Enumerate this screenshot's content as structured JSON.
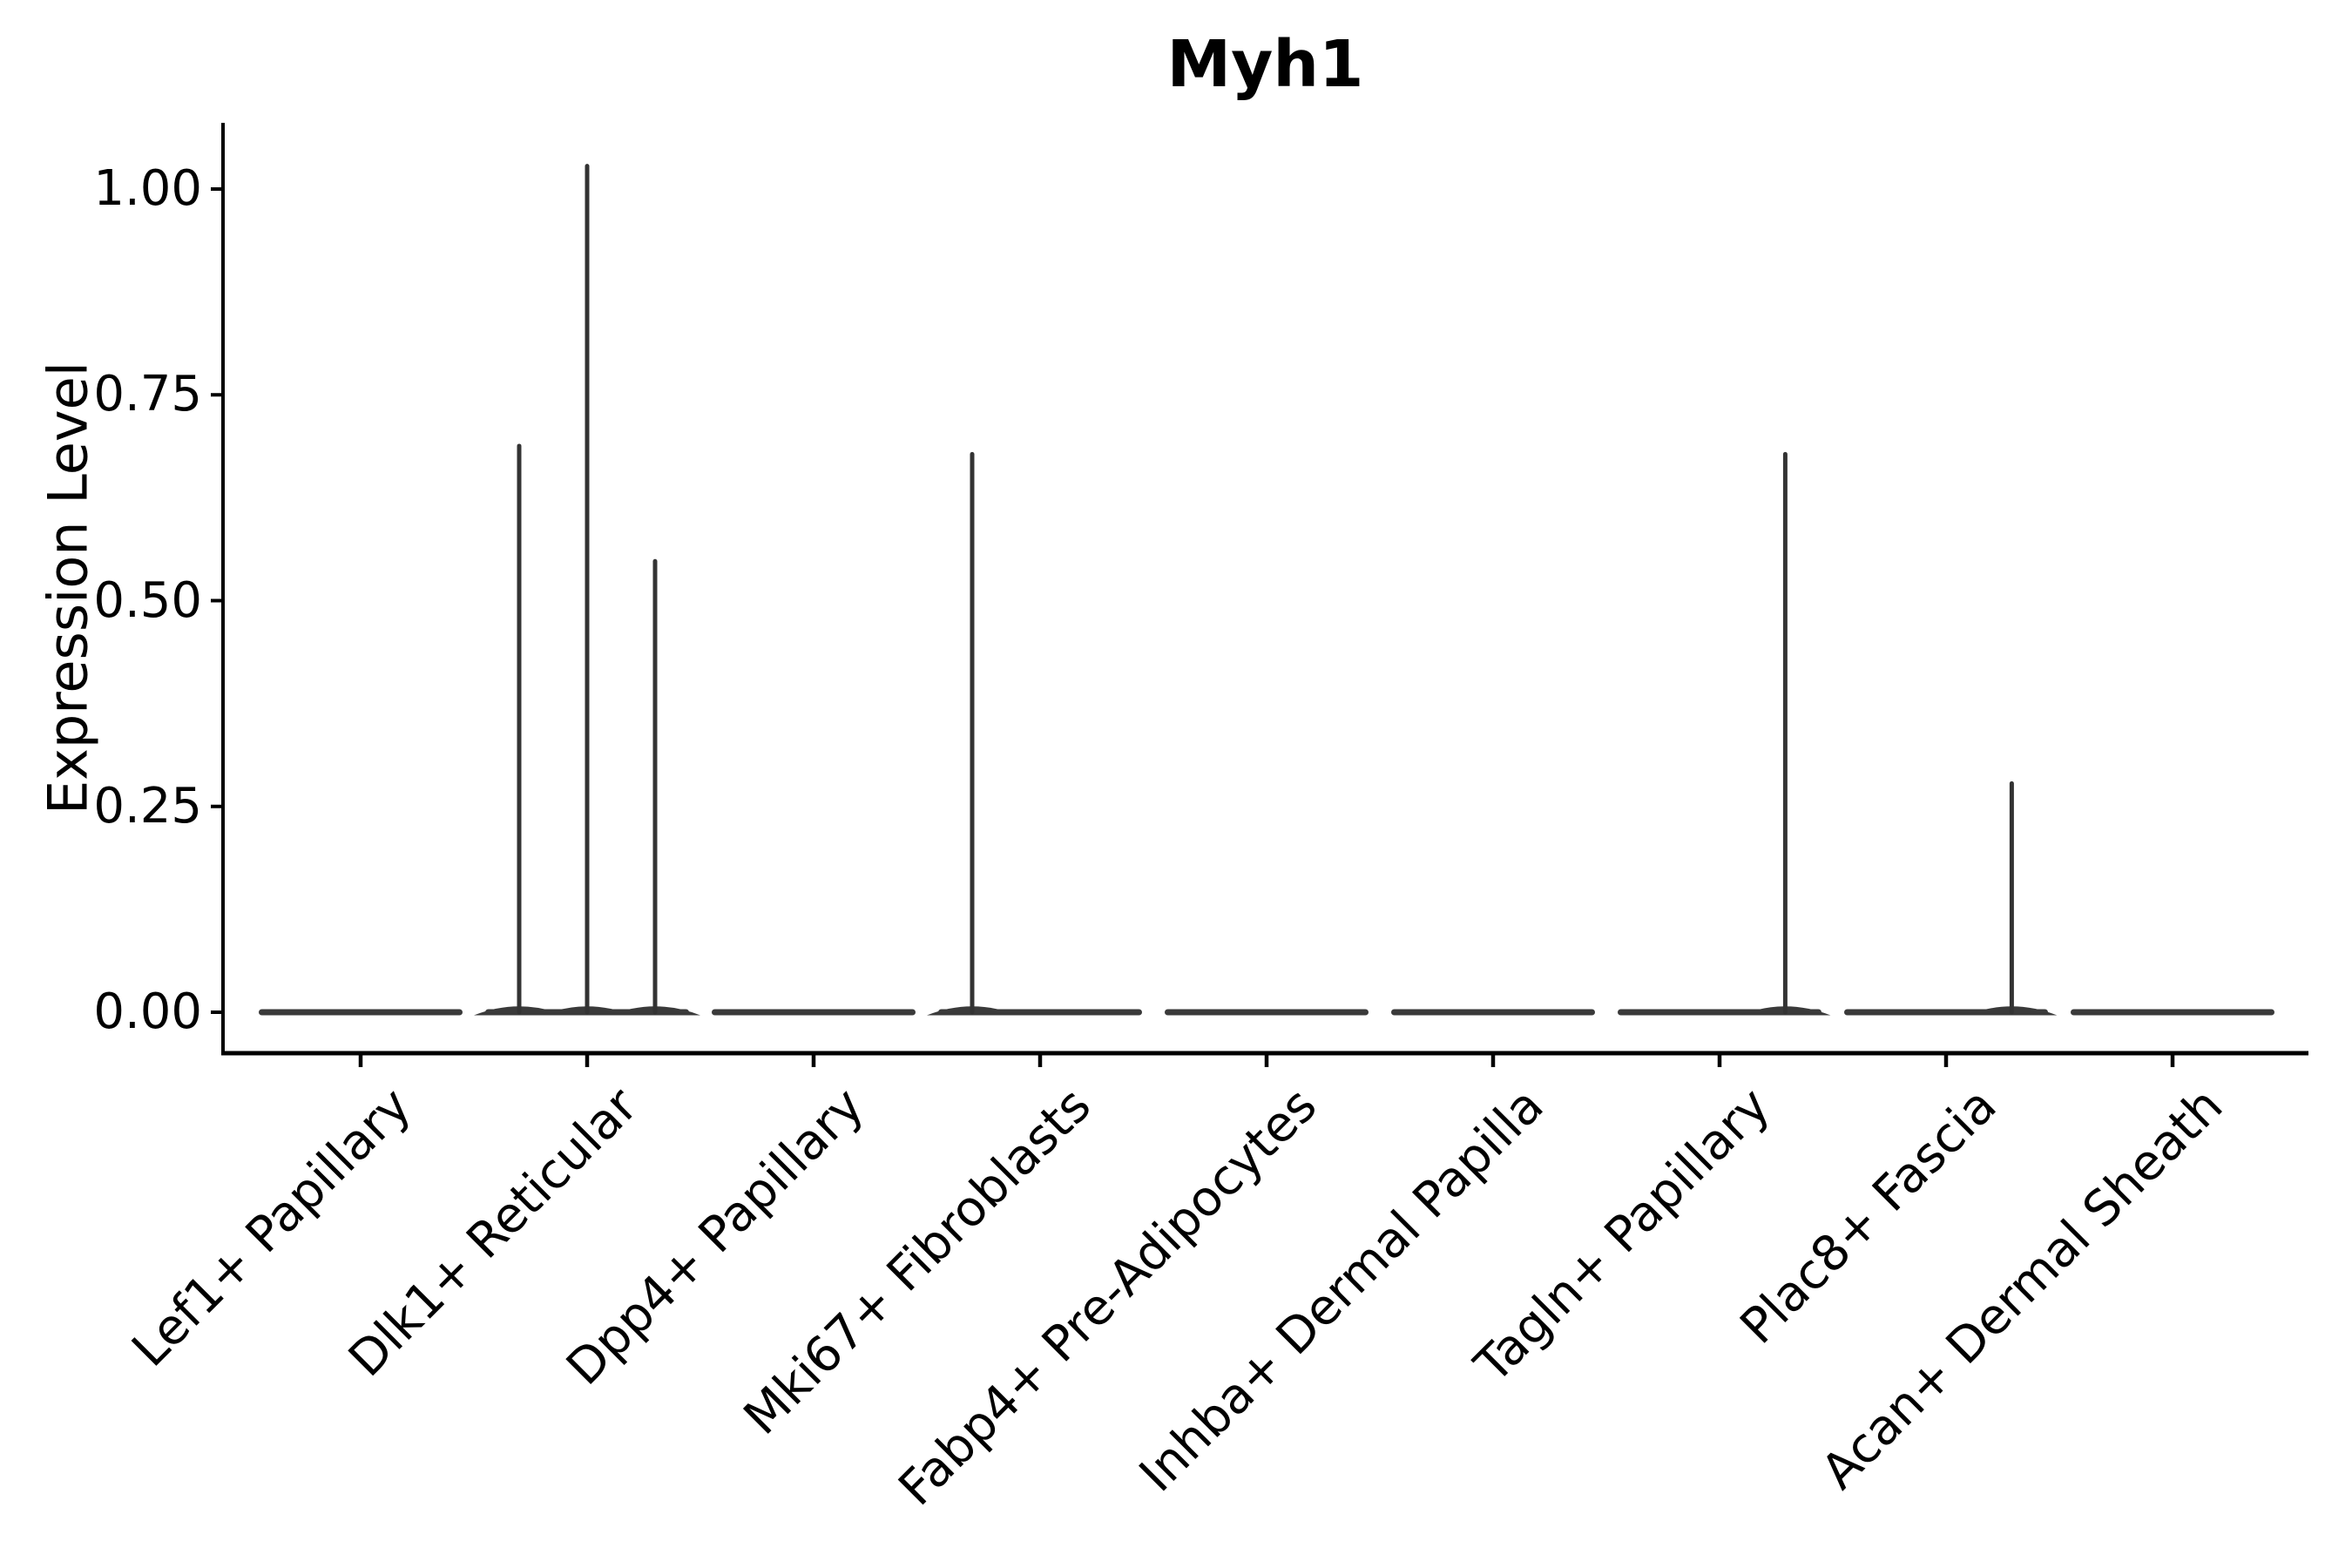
{
  "chart_data": {
    "type": "violin",
    "title": "Myh1",
    "xlabel": "",
    "ylabel": "Expression Level",
    "ylim": [
      -0.05,
      1.08
    ],
    "ytick_values": [
      0.0,
      0.25,
      0.5,
      0.75,
      1.0
    ],
    "ytick_labels": [
      "0.00",
      "0.25",
      "0.50",
      "0.75",
      "1.00"
    ],
    "grid": false,
    "legend": "none",
    "categories": [
      "Lef1+ Papillary",
      "Dlk1+ Reticular",
      "Dpp4+ Papillary",
      "Mki67+ Fibroblasts",
      "Fabp4+ Pre-Adipocytes",
      "Inhba+ Dermal Papilla",
      "Tagln+ Papillary",
      "Plac8+ Fascia",
      "Acan+ Dermal Sheath"
    ],
    "violins": [
      {
        "category": "Lef1+ Papillary",
        "baseline_value": 0.0,
        "spikes": []
      },
      {
        "category": "Dlk1+ Reticular",
        "baseline_value": 0.0,
        "spikes": [
          {
            "offset": -0.3,
            "value": 0.69
          },
          {
            "offset": 0.0,
            "value": 1.03
          },
          {
            "offset": 0.3,
            "value": 0.55
          }
        ]
      },
      {
        "category": "Dpp4+ Papillary",
        "baseline_value": 0.0,
        "spikes": []
      },
      {
        "category": "Mki67+ Fibroblasts",
        "baseline_value": 0.0,
        "spikes": [
          {
            "offset": -0.3,
            "value": 0.68
          }
        ]
      },
      {
        "category": "Fabp4+ Pre-Adipocytes",
        "baseline_value": 0.0,
        "spikes": []
      },
      {
        "category": "Inhba+ Dermal Papilla",
        "baseline_value": 0.0,
        "spikes": []
      },
      {
        "category": "Tagln+ Papillary",
        "baseline_value": 0.0,
        "spikes": [
          {
            "offset": 0.29,
            "value": 0.68
          }
        ]
      },
      {
        "category": "Plac8+ Fascia",
        "baseline_value": 0.0,
        "spikes": [
          {
            "offset": 0.29,
            "value": 0.28
          }
        ]
      },
      {
        "category": "Acan+ Dermal Sheath",
        "baseline_value": 0.0,
        "spikes": []
      }
    ],
    "colors": {
      "violin_fill": "#3a3a3a",
      "spike_stroke": "#333333",
      "axis": "#000000",
      "text": "#000000",
      "background": "#ffffff"
    }
  }
}
